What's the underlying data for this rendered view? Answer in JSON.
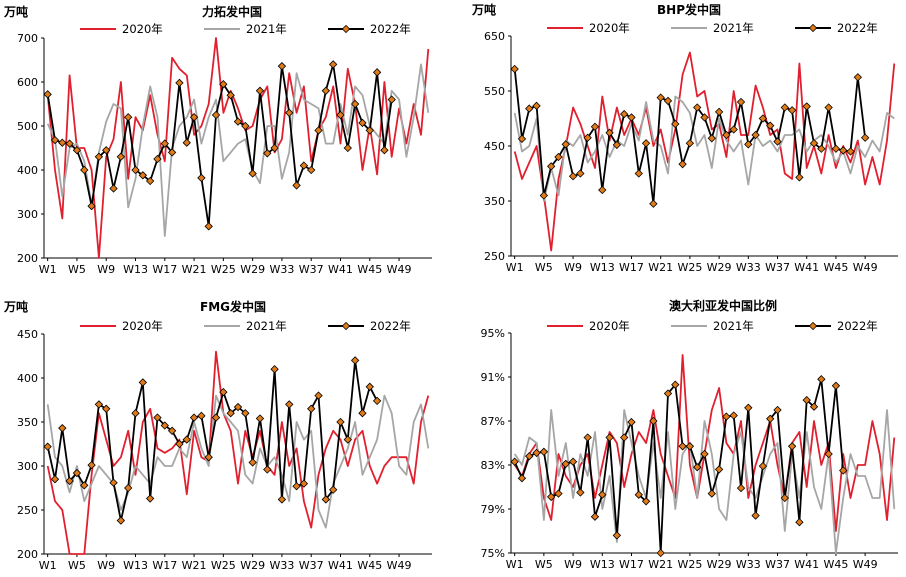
{
  "colors": {
    "y2020": "#e0202e",
    "y2021": "#a6a6a6",
    "y2022": "#000000",
    "marker": "#e07b1a"
  },
  "chart_data": [
    {
      "type": "line",
      "title": "力拓发中国",
      "unit": "万吨",
      "ylim": [
        200,
        700
      ],
      "yticks": [
        "200",
        "300",
        "400",
        "500",
        "600",
        "700"
      ],
      "xticks": [
        "W1",
        "W5",
        "W9",
        "W13",
        "W17",
        "W21",
        "W25",
        "W29",
        "W33",
        "W37",
        "W41",
        "W45",
        "W49"
      ],
      "series": [
        {
          "name": "2020年",
          "values": [
            570,
            400,
            290,
            615,
            450,
            450,
            400,
            200,
            430,
            470,
            600,
            380,
            520,
            490,
            570,
            480,
            420,
            655,
            630,
            615,
            480,
            500,
            550,
            700,
            530,
            580,
            540,
            490,
            500,
            560,
            590,
            440,
            470,
            620,
            530,
            590,
            420,
            490,
            520,
            590,
            460,
            630,
            550,
            400,
            500,
            390,
            600,
            430,
            540,
            460,
            550,
            480,
            675
          ]
        },
        {
          "name": "2021年",
          "values": [
            505,
            470,
            340,
            450,
            460,
            420,
            320,
            440,
            510,
            550,
            540,
            315,
            380,
            500,
            590,
            520,
            250,
            450,
            500,
            520,
            560,
            460,
            520,
            560,
            420,
            440,
            460,
            470,
            400,
            370,
            500,
            500,
            380,
            440,
            620,
            560,
            550,
            540,
            460,
            460,
            550,
            480,
            590,
            570,
            500,
            480,
            460,
            580,
            560,
            430,
            520,
            640,
            530
          ]
        },
        {
          "name": "2022年",
          "values": [
            572,
            468,
            462,
            460,
            445,
            400,
            318,
            430,
            445,
            358,
            430,
            520,
            400,
            388,
            375,
            425,
            460,
            440,
            598,
            462,
            520,
            382,
            272,
            525,
            595,
            570,
            510,
            500,
            392,
            580,
            438,
            450,
            636,
            530,
            365,
            410,
            400,
            490,
            580,
            640,
            525,
            450,
            550,
            507,
            490,
            622,
            445,
            560
          ]
        }
      ]
    },
    {
      "type": "line",
      "title": "BHP发中国",
      "unit": "万吨",
      "ylim": [
        250,
        650
      ],
      "yticks": [
        "250",
        "350",
        "450",
        "550",
        "650"
      ],
      "xticks": [
        "W1",
        "W5",
        "W9",
        "W13",
        "W17",
        "W21",
        "W25",
        "W29",
        "W33",
        "W37",
        "W41",
        "W45",
        "W49"
      ],
      "series": [
        {
          "name": "2020年",
          "values": [
            440,
            390,
            420,
            450,
            360,
            260,
            390,
            450,
            520,
            490,
            450,
            410,
            540,
            460,
            520,
            470,
            500,
            470,
            520,
            450,
            480,
            420,
            480,
            580,
            620,
            540,
            550,
            480,
            490,
            430,
            550,
            470,
            470,
            560,
            520,
            470,
            480,
            400,
            390,
            600,
            410,
            450,
            400,
            470,
            410,
            450,
            420,
            460,
            380,
            430,
            380,
            460,
            600
          ]
        },
        {
          "name": "2021年",
          "values": [
            510,
            440,
            450,
            500,
            350,
            410,
            360,
            460,
            450,
            470,
            420,
            440,
            470,
            430,
            460,
            450,
            490,
            460,
            530,
            460,
            450,
            400,
            540,
            530,
            510,
            450,
            470,
            410,
            500,
            460,
            440,
            460,
            380,
            470,
            450,
            460,
            440,
            470,
            470,
            480,
            440,
            460,
            470,
            450,
            420,
            440,
            400,
            450,
            430,
            460,
            440,
            510,
            500
          ]
        },
        {
          "name": "2022年",
          "values": [
            590,
            463,
            518,
            523,
            360,
            413,
            430,
            453,
            395,
            400,
            465,
            485,
            370,
            474,
            452,
            508,
            502,
            400,
            455,
            345,
            538,
            532,
            490,
            417,
            455,
            520,
            502,
            464,
            512,
            470,
            480,
            530,
            453,
            470,
            500,
            487,
            458,
            520,
            515,
            393,
            522,
            455,
            445,
            520,
            445,
            442,
            440,
            575,
            465
          ]
        }
      ]
    },
    {
      "type": "line",
      "title": "FMG发中国",
      "unit": "万吨",
      "ylim": [
        200,
        450
      ],
      "yticks": [
        "200",
        "250",
        "300",
        "350",
        "400",
        "450"
      ],
      "xticks": [
        "W1",
        "W5",
        "W9",
        "W13",
        "W17",
        "W21",
        "W25",
        "W29",
        "W33",
        "W37",
        "W41",
        "W45",
        "W49"
      ],
      "series": [
        {
          "name": "2020年",
          "values": [
            300,
            260,
            250,
            195,
            200,
            195,
            290,
            360,
            330,
            300,
            310,
            340,
            290,
            350,
            365,
            320,
            315,
            320,
            330,
            268,
            340,
            310,
            305,
            430,
            360,
            340,
            280,
            340,
            310,
            340,
            300,
            290,
            350,
            300,
            320,
            260,
            230,
            290,
            320,
            340,
            330,
            300,
            330,
            340,
            300,
            280,
            300,
            310,
            310,
            310,
            280,
            350,
            380
          ]
        },
        {
          "name": "2021年",
          "values": [
            370,
            310,
            300,
            270,
            300,
            260,
            280,
            300,
            290,
            280,
            250,
            270,
            300,
            290,
            280,
            310,
            300,
            300,
            320,
            310,
            350,
            320,
            300,
            380,
            360,
            350,
            340,
            290,
            280,
            320,
            300,
            310,
            290,
            260,
            350,
            330,
            340,
            250,
            230,
            280,
            300,
            320,
            350,
            290,
            310,
            330,
            380,
            360,
            300,
            290,
            350,
            370,
            320
          ]
        },
        {
          "name": "2022年",
          "values": [
            322,
            285,
            343,
            283,
            292,
            278,
            301,
            370,
            365,
            281,
            238,
            275,
            360,
            395,
            263,
            355,
            346,
            340,
            325,
            330,
            355,
            357,
            310,
            355,
            384,
            360,
            367,
            360,
            304,
            354,
            296,
            410,
            262,
            370,
            277,
            280,
            365,
            380,
            262,
            273,
            350,
            330,
            420,
            360,
            390,
            374
          ]
        }
      ]
    },
    {
      "type": "line",
      "title": "澳大利亚发中国比例",
      "unit": "",
      "ylim": [
        75,
        95
      ],
      "yticks": [
        "75%",
        "79%",
        "83%",
        "87%",
        "91%",
        "95%"
      ],
      "xticks": [
        "W1",
        "W5",
        "W9",
        "W13",
        "W17",
        "W21",
        "W25",
        "W29",
        "W33",
        "W37",
        "W41",
        "W45",
        "W49"
      ],
      "series": [
        {
          "name": "2020年",
          "values": [
            83,
            82,
            84,
            85,
            80,
            78,
            84,
            82,
            81,
            83,
            84,
            80,
            83,
            86,
            85,
            81,
            84,
            86,
            85,
            88,
            84,
            82,
            80,
            93,
            83,
            80,
            84,
            88,
            90,
            85,
            84,
            87,
            80,
            83,
            85,
            87,
            83,
            80,
            85,
            86,
            81,
            87,
            83,
            85,
            77,
            84,
            80,
            83,
            83,
            87,
            84,
            78,
            85.5
          ]
        },
        {
          "name": "2021年",
          "values": [
            84,
            83,
            85.5,
            85,
            78,
            88,
            82,
            85,
            80,
            84,
            82,
            86,
            79,
            82,
            76,
            88,
            85,
            82,
            80,
            85,
            80,
            86,
            79,
            84,
            85,
            80,
            87,
            84,
            79,
            78,
            84,
            86,
            81,
            80,
            82,
            84,
            85,
            77,
            84,
            80,
            86,
            81,
            79,
            84,
            75,
            80,
            84,
            82,
            82,
            80,
            80,
            88,
            79
          ]
        },
        {
          "name": "2022年",
          "values": [
            83.3,
            81.8,
            83.8,
            84.1,
            84.2,
            80.1,
            80.4,
            83.1,
            83.3,
            80.5,
            85.5,
            78.3,
            80.3,
            85.5,
            76.6,
            85.5,
            86.9,
            80.3,
            79.7,
            87.0,
            75.0,
            89.5,
            90.3,
            84.7,
            84.7,
            82.8,
            84.0,
            80.4,
            82.6,
            87.4,
            87.5,
            80.9,
            88.2,
            78.4,
            82.9,
            87.2,
            88.0,
            80.0,
            84.7,
            77.8,
            88.9,
            88.3,
            90.8,
            84.0,
            90.2,
            82.5
          ]
        }
      ]
    }
  ]
}
